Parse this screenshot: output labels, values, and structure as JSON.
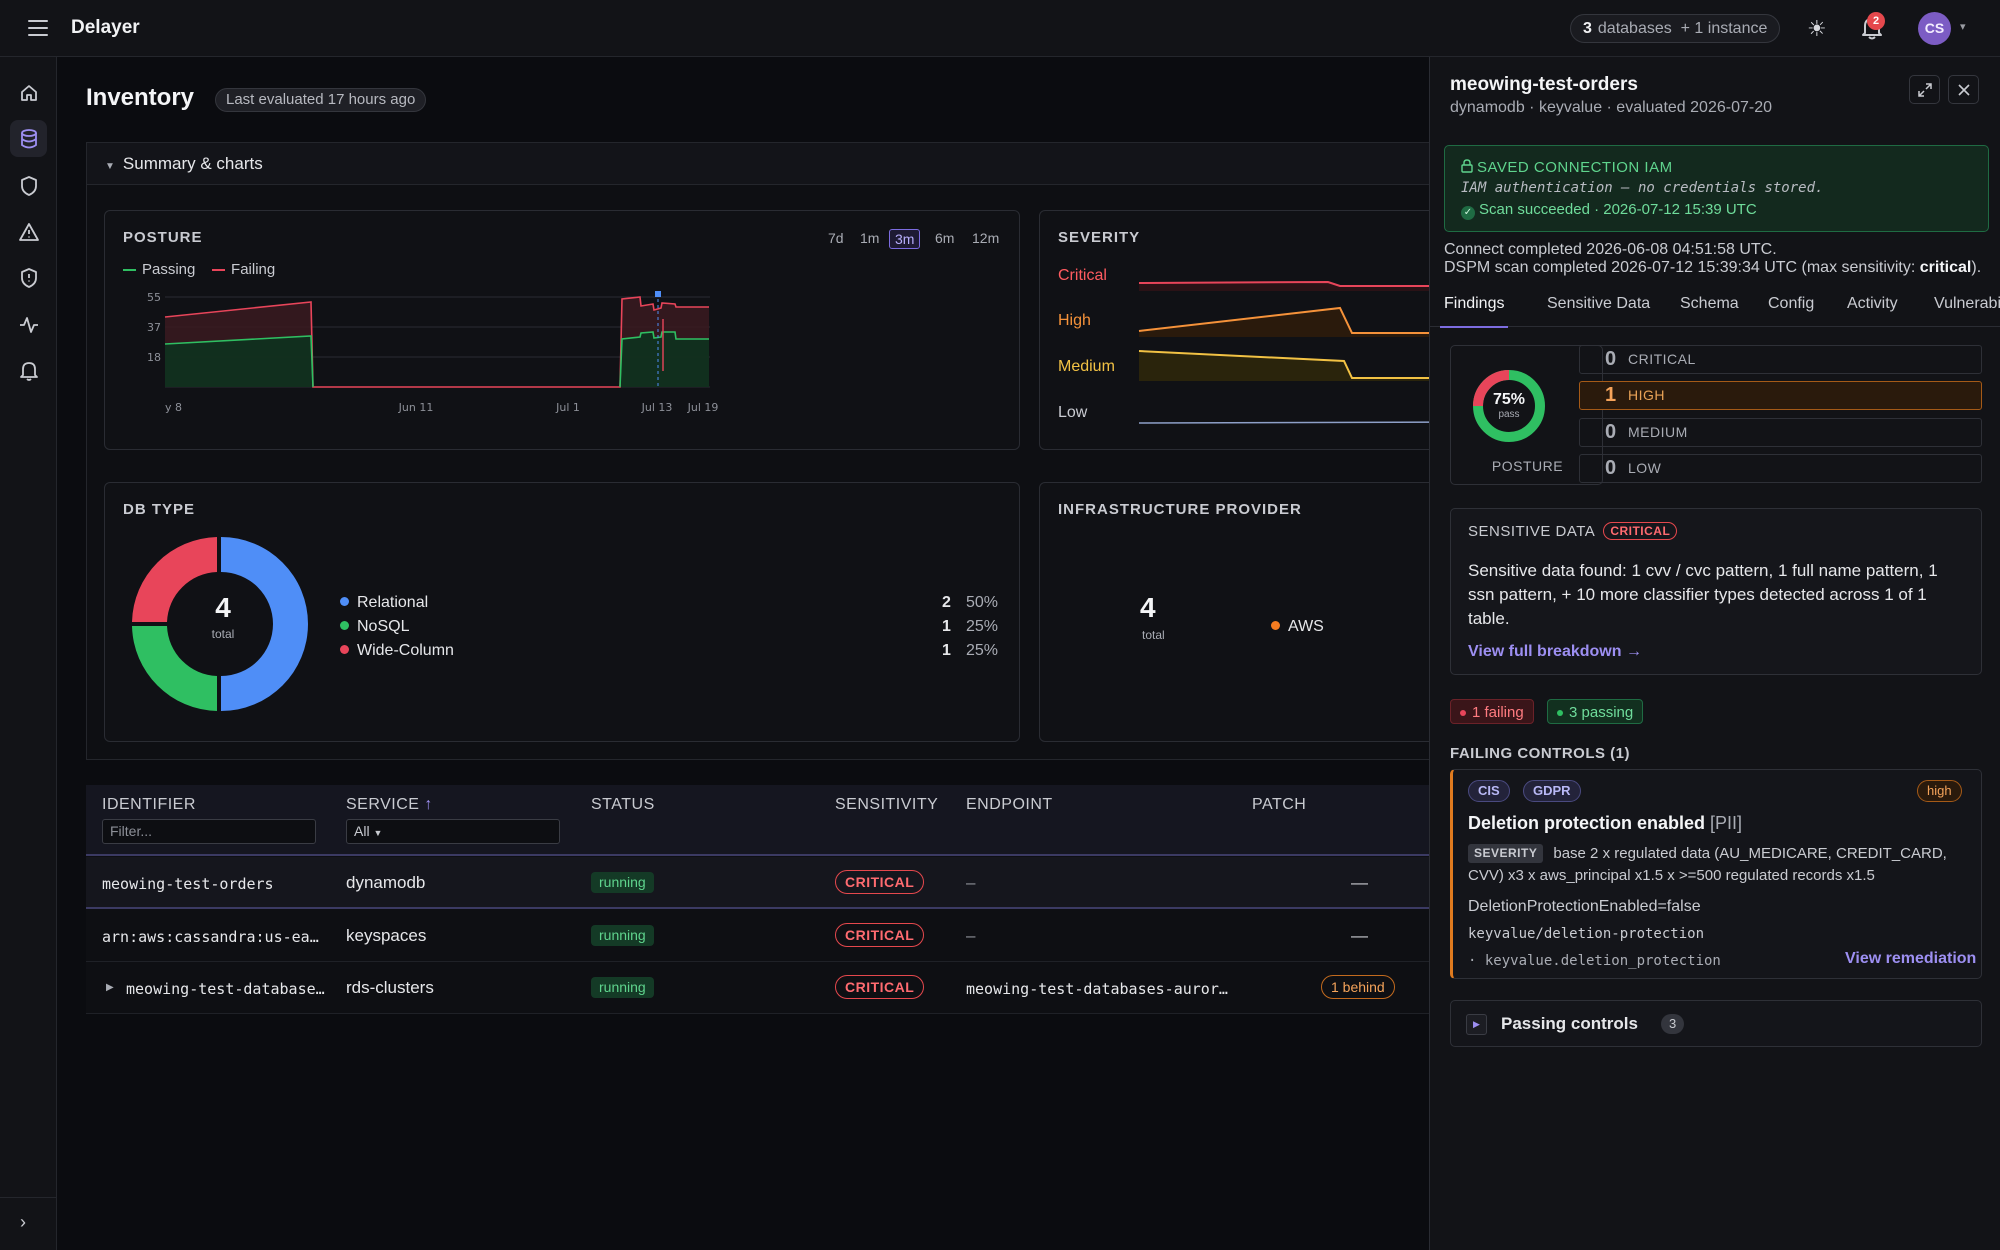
{
  "app": {
    "name": "Delayer",
    "db_count": "3",
    "db_label": "databases",
    "instance_label": "+ 1 instance",
    "notif_count": "2",
    "avatar_initials": "CS"
  },
  "page": {
    "title": "Inventory",
    "last_evaluated": "Last evaluated 17 hours ago",
    "summary_label": "Summary & charts"
  },
  "posture": {
    "title": "POSTURE",
    "legend_passing": "Passing",
    "legend_failing": "Failing",
    "ranges": [
      "7d",
      "1m",
      "3m",
      "6m",
      "12m"
    ],
    "selected_range": "3m"
  },
  "severity_card": {
    "title": "SEVERITY",
    "labels": [
      "Critical",
      "High",
      "Medium",
      "Low"
    ]
  },
  "dbtype": {
    "title": "DB TYPE",
    "total": "4",
    "total_label": "total",
    "items": [
      {
        "name": "Relational",
        "count": "2",
        "pct": "50%",
        "color": "#4f8ef7"
      },
      {
        "name": "NoSQL",
        "count": "1",
        "pct": "25%",
        "color": "#2fbf62"
      },
      {
        "name": "Wide-Column",
        "count": "1",
        "pct": "25%",
        "color": "#e8455a"
      }
    ]
  },
  "infra": {
    "title": "INFRASTRUCTURE PROVIDER",
    "total": "4",
    "total_label": "total",
    "provider": "AWS",
    "provider_color": "#f47b20"
  },
  "chart_data": {
    "type": "line",
    "x_ticks": [
      "y 8",
      "Jun 11",
      "Jul 1",
      "Jul 13",
      "Jul 19"
    ],
    "y_ticks": [
      18,
      37,
      55
    ],
    "series": [
      {
        "name": "Passing",
        "color": "#2fbf62"
      },
      {
        "name": "Failing",
        "color": "#e8455a"
      }
    ]
  },
  "table": {
    "headers": {
      "identifier": "IDENTIFIER",
      "service": "SERVICE",
      "status": "STATUS",
      "sensitivity": "SENSITIVITY",
      "endpoint": "ENDPOINT",
      "patch": "PATCH"
    },
    "filter_placeholder": "Filter...",
    "service_filter": "All",
    "rows": [
      {
        "identifier": "meowing-test-orders",
        "service": "dynamodb",
        "status": "running",
        "sensitivity": "CRITICAL",
        "endpoint": "–",
        "patch": "—"
      },
      {
        "identifier": "arn:aws:cassandra:us-ea…",
        "service": "keyspaces",
        "status": "running",
        "sensitivity": "CRITICAL",
        "endpoint": "–",
        "patch": "—"
      },
      {
        "identifier": "meowing-test-database…",
        "service": "rds-clusters",
        "status": "running",
        "sensitivity": "CRITICAL",
        "endpoint": "meowing-test-databases-auror…",
        "patch": "1 behind"
      }
    ]
  },
  "panel": {
    "title": "meowing-test-orders",
    "subtitle": "dynamodb · keyvalue · evaluated 2026-07-20",
    "conn_title": "SAVED CONNECTION IAM",
    "conn_italic": "IAM authentication — no credentials stored.",
    "conn_ok": "Scan succeeded · 2026-07-12 15:39 UTC",
    "connect_completed": "Connect completed 2026-06-08 04:51:58 UTC.",
    "dspm_prefix": "DSPM scan completed 2026-07-12 15:39:34 UTC (max sensitivity: ",
    "dspm_bold": "critical",
    "dspm_suffix": ").",
    "tabs": [
      "Findings",
      "Sensitive Data",
      "Schema",
      "Config",
      "Activity",
      "Vulnerabi"
    ],
    "posture_pct": "75%",
    "posture_pass": "pass",
    "posture_label": "POSTURE",
    "severities": [
      {
        "count": "0",
        "label": "CRITICAL"
      },
      {
        "count": "1",
        "label": "HIGH"
      },
      {
        "count": "0",
        "label": "MEDIUM"
      },
      {
        "count": "0",
        "label": "LOW"
      }
    ],
    "sens_title": "SENSITIVE DATA",
    "sens_tag": "CRITICAL",
    "sens_text": "Sensitive data found: 1 cvv / cvc pattern, 1 full name pattern, 1 ssn pattern, + 10 more classifier types detected across 1 of 1 table.",
    "sens_link": "View full breakdown →",
    "failing_chip": "1 failing",
    "passing_chip": "3 passing",
    "failing_header": "FAILING CONTROLS (1)",
    "control": {
      "tags": [
        "CIS",
        "GDPR"
      ],
      "level": "high",
      "title": "Deletion protection enabled",
      "title_suffix": "[PII]",
      "severity_tag": "SEVERITY",
      "severity_text": "base 2 x regulated data (AU_MEDICARE, CREDIT_CARD, CVV) x3 x aws_principal x1.5 x >=500 regulated records x1.5",
      "detail": "DeletionProtectionEnabled=false",
      "path": "keyvalue/deletion-protection",
      "key": "· keyvalue.deletion_protection",
      "remediation": "View remediation"
    },
    "passing_label": "Passing controls",
    "passing_count": "3"
  }
}
